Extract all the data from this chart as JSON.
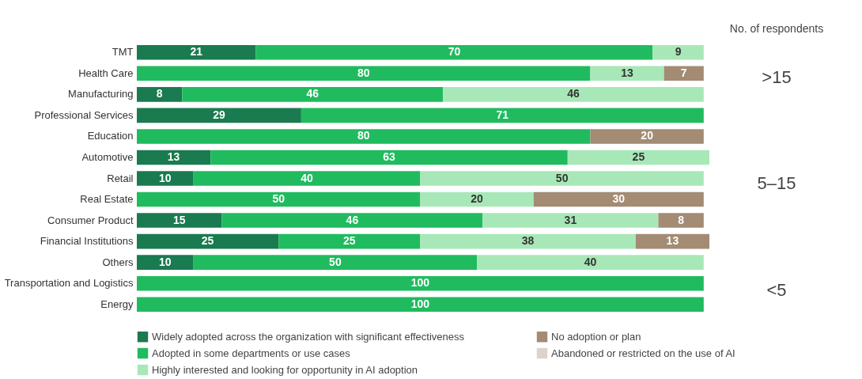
{
  "chart_data": {
    "type": "bar",
    "orientation": "horizontal",
    "stacked": true,
    "data_labels": true,
    "legend": "bottom",
    "grid": false,
    "tick_labels": "y",
    "xlim": [
      0,
      101
    ],
    "categories": [
      "TMT",
      "Health Care",
      "Manufacturing",
      "Professional Services",
      "Education",
      "Automotive",
      "Retail",
      "Real Estate",
      "Consumer Product",
      "Financial Institutions",
      "Others",
      "Transportation and Logistics",
      "Energy"
    ],
    "series": [
      {
        "name": "Widely adopted across the organization with significant effectiveness",
        "color": "#1a7a50",
        "values": [
          21,
          null,
          8,
          29,
          null,
          13,
          10,
          null,
          15,
          25,
          10,
          null,
          null
        ]
      },
      {
        "name": "Adopted in some departments or use cases",
        "color": "#20bb5e",
        "values": [
          70,
          80,
          46,
          71,
          80,
          63,
          40,
          50,
          46,
          25,
          50,
          100,
          100
        ]
      },
      {
        "name": "Highly interested and looking for opportunity in AI adoption",
        "color": "#a8e8b8",
        "values": [
          9,
          13,
          46,
          null,
          null,
          25,
          50,
          20,
          31,
          38,
          40,
          null,
          null
        ]
      },
      {
        "name": "No adoption or plan",
        "color": "#a38b74",
        "values": [
          null,
          7,
          null,
          null,
          20,
          null,
          null,
          30,
          8,
          13,
          null,
          null,
          null
        ]
      },
      {
        "name": "Abandoned or restricted on the use of AI",
        "color": "#dcd3cc",
        "values": [
          null,
          null,
          null,
          null,
          null,
          null,
          null,
          null,
          null,
          null,
          null,
          null,
          null
        ]
      }
    ],
    "annotations": [
      "No. of respondents",
      ">15",
      "5–15",
      "<5"
    ]
  }
}
